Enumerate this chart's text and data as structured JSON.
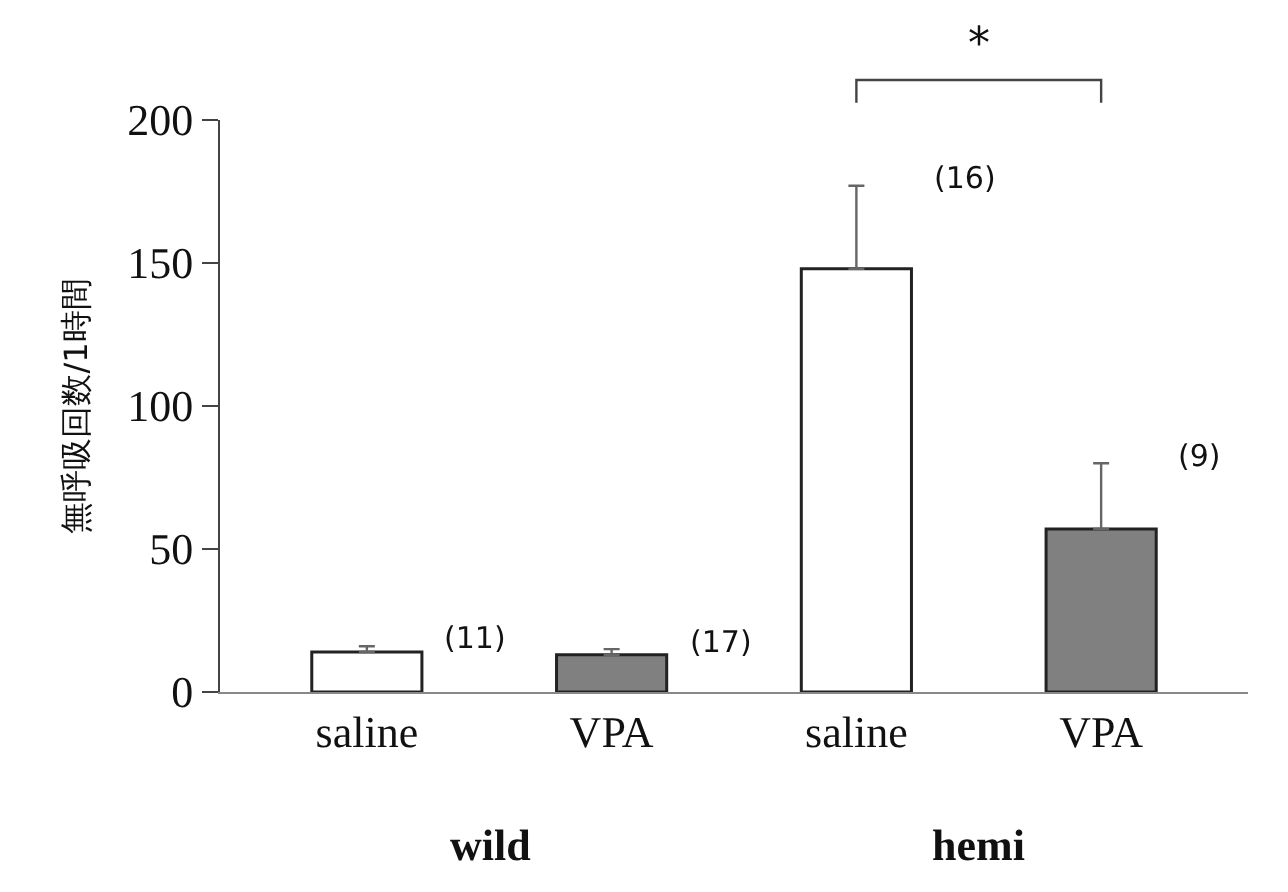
{
  "chart_data": {
    "type": "bar",
    "ylabel": "無呼吸回数/1時間",
    "categories": [
      "saline",
      "VPA",
      "saline",
      "VPA"
    ],
    "values": [
      14,
      13,
      148,
      57
    ],
    "errors": [
      2,
      2,
      29,
      23
    ],
    "colors": [
      "#ffffff",
      "#808080",
      "#ffffff",
      "#808080"
    ],
    "ylim": [
      0,
      200
    ],
    "yticks": [
      0,
      50,
      100,
      150,
      200
    ],
    "legend": false,
    "annotations": [
      "(11)",
      "(17)",
      "(16)",
      "(9)",
      "wild",
      "hemi",
      "*"
    ]
  }
}
